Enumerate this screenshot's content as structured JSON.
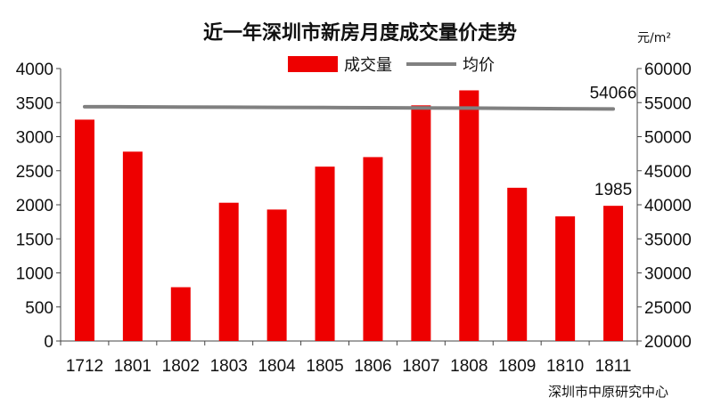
{
  "chart_data": {
    "type": "bar",
    "title": "近一年深圳市新房月度成交量价走势",
    "categories": [
      "1712",
      "1801",
      "1802",
      "1803",
      "1804",
      "1805",
      "1806",
      "1807",
      "1808",
      "1809",
      "1810",
      "1811"
    ],
    "series": [
      {
        "name": "成交量",
        "type": "bar",
        "axis": "left",
        "color": "#ee0000",
        "values": [
          3250,
          2780,
          790,
          2030,
          1930,
          2560,
          2700,
          3460,
          3680,
          2250,
          1830,
          1985
        ]
      },
      {
        "name": "均价",
        "type": "line",
        "axis": "right",
        "color": "#808080",
        "values": [
          54400,
          54380,
          54350,
          54330,
          54300,
          54280,
          54250,
          54220,
          54200,
          54150,
          54100,
          54066
        ]
      }
    ],
    "ylim_left": [
      0,
      4000
    ],
    "yticks_left": [
      0,
      500,
      1000,
      1500,
      2000,
      2500,
      3000,
      3500,
      4000
    ],
    "ylim_right": [
      20000,
      60000
    ],
    "yticks_right": [
      20000,
      25000,
      30000,
      35000,
      40000,
      45000,
      50000,
      55000,
      60000
    ],
    "right_unit": "元/m²",
    "annotations": [
      {
        "series": "均价",
        "index": 11,
        "text": "54066"
      },
      {
        "series": "成交量",
        "index": 11,
        "text": "1985"
      }
    ],
    "legend_position": "top",
    "source": "深圳市中原研究中心",
    "grid": false
  }
}
